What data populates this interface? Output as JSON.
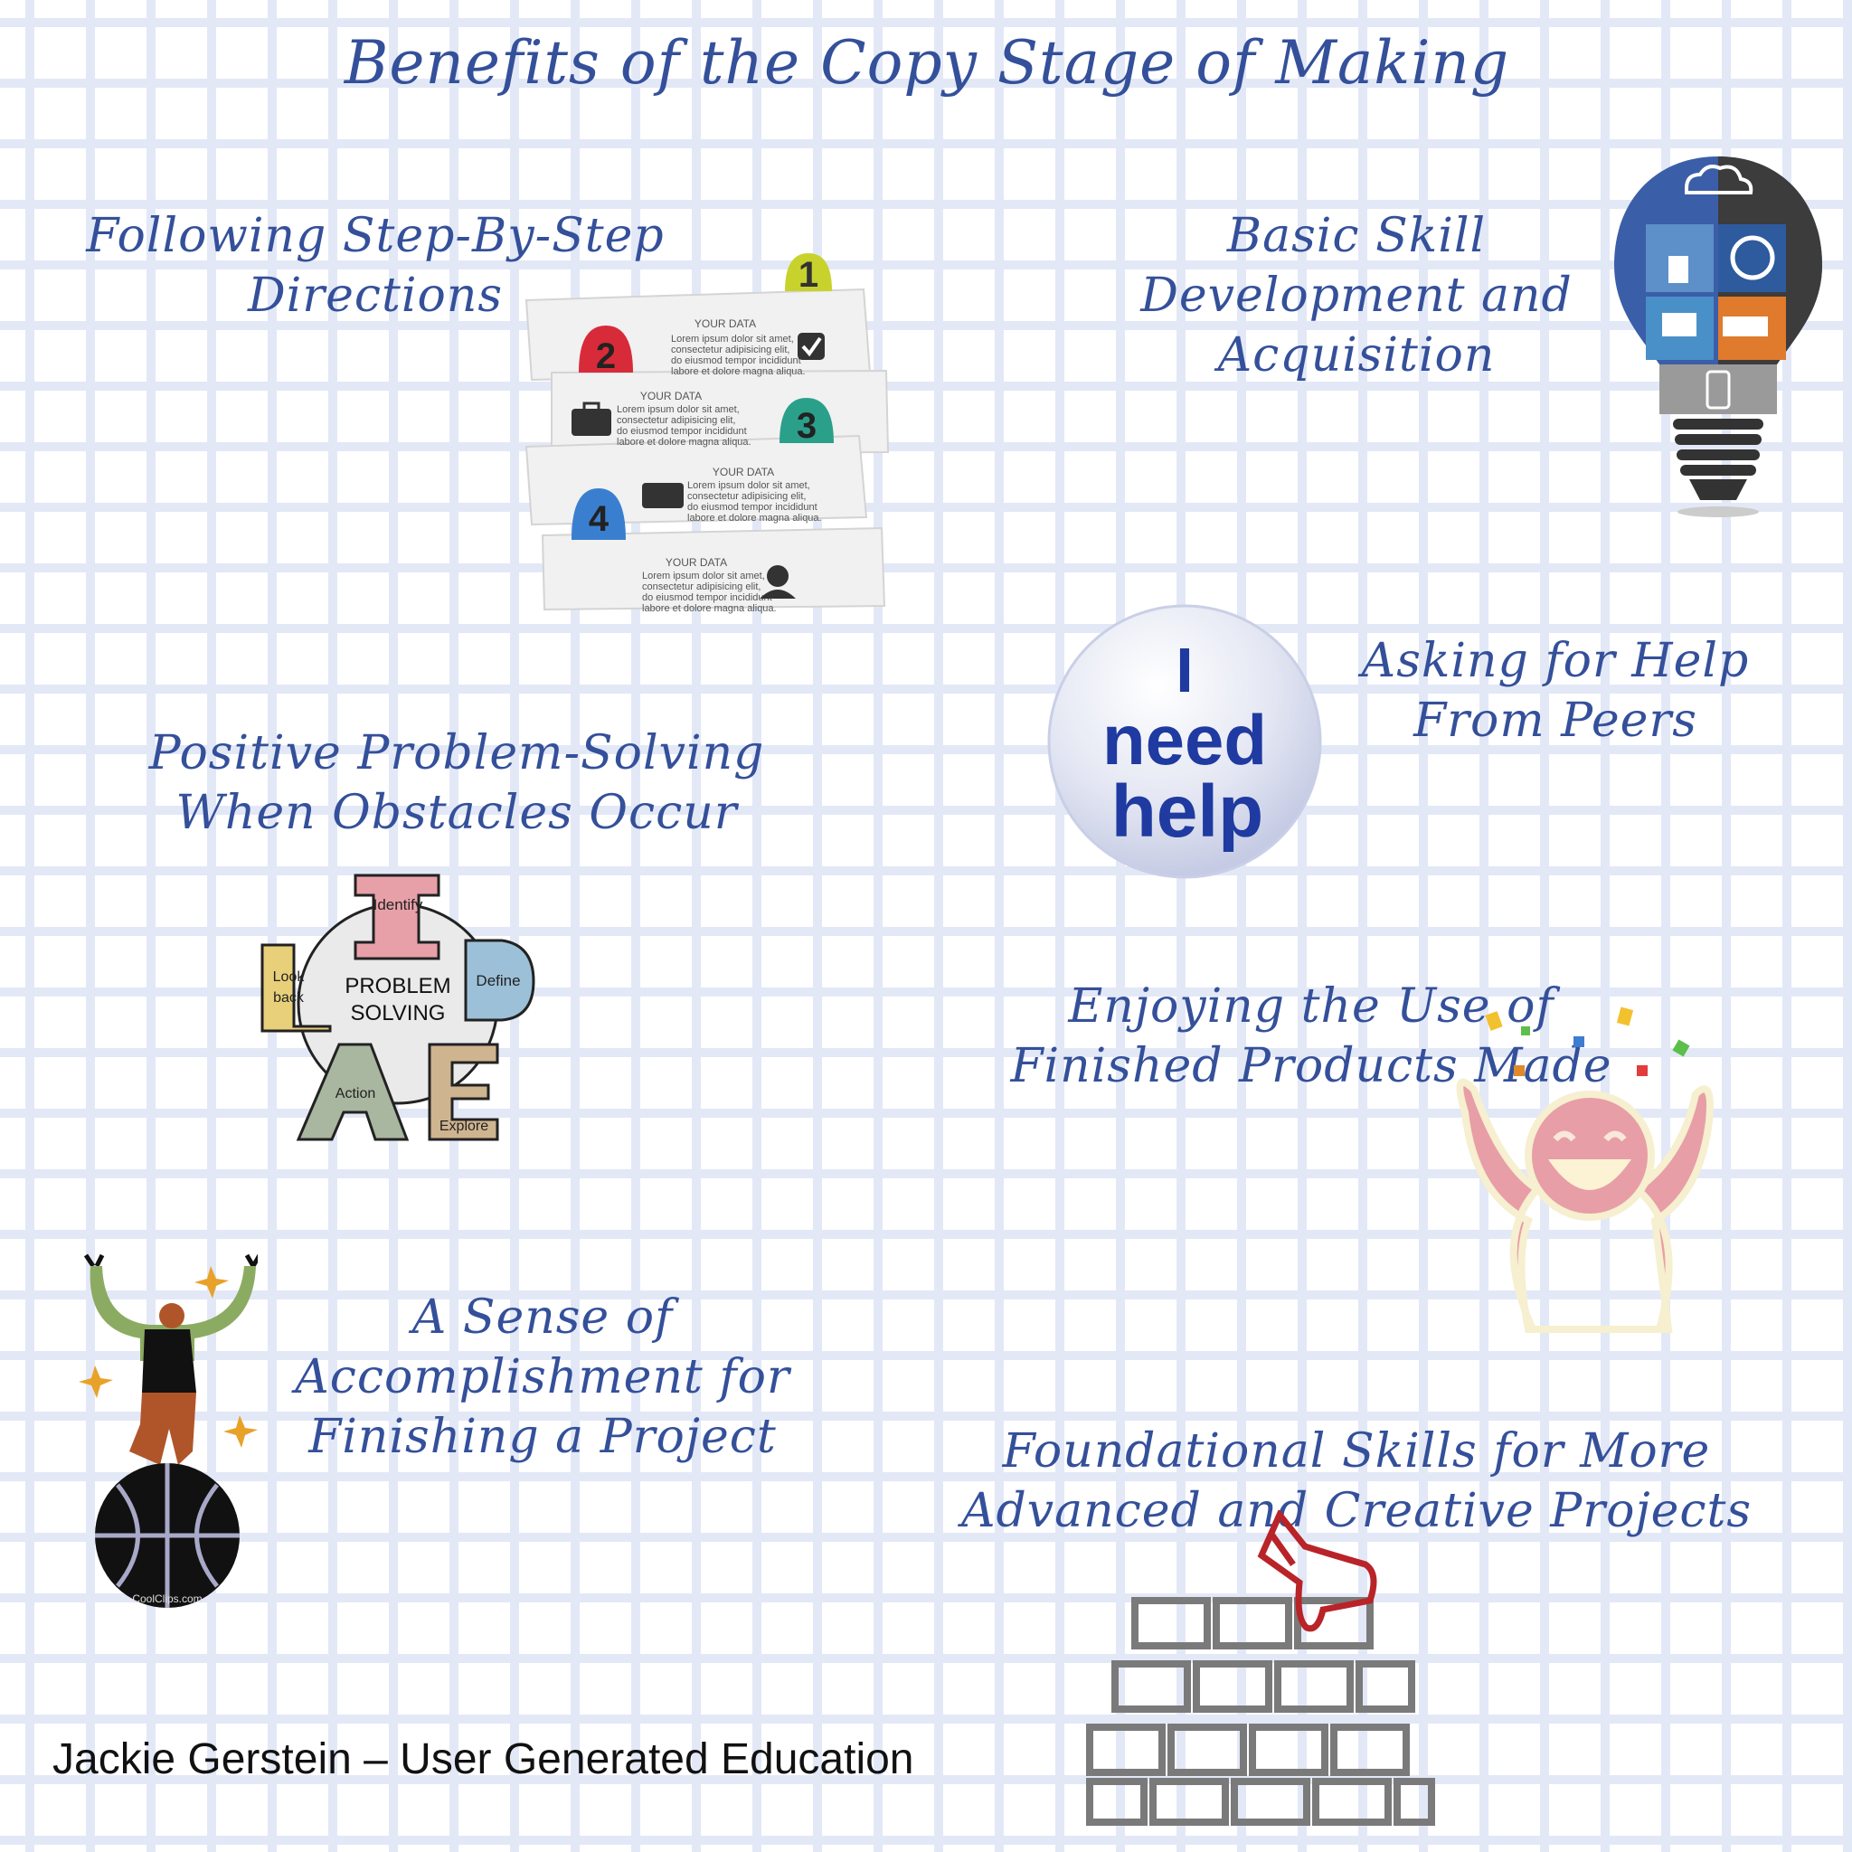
{
  "title": "Benefits of the Copy Stage of Making",
  "benefits": [
    {
      "lines": [
        "Following Step-By-Step",
        "Directions"
      ]
    },
    {
      "lines": [
        "Basic Skill",
        "Development and",
        "Acquisition"
      ]
    },
    {
      "lines": [
        "Asking for Help",
        "From Peers"
      ]
    },
    {
      "lines": [
        "Positive Problem-Solving",
        "When Obstacles Occur"
      ]
    },
    {
      "lines": [
        "Enjoying the Use of",
        "Finished Products Made"
      ]
    },
    {
      "lines": [
        "A Sense of",
        "Accomplishment for",
        "Finishing a Project"
      ]
    },
    {
      "lines": [
        "Foundational Skills for More",
        "Advanced and Creative Projects"
      ]
    }
  ],
  "steps_graphic": {
    "numbers": [
      "1",
      "2",
      "3",
      "4"
    ],
    "card_heading": "YOUR DATA",
    "card_body": [
      "Lorem ipsum dolor sit amet,",
      "consectetur adipisicing elit,",
      "do eiusmod tempor incididunt",
      "labore et dolore magna aliqua."
    ]
  },
  "help_bubble": {
    "lines": [
      "I",
      "need",
      "help"
    ]
  },
  "problem_solving": {
    "center": [
      "PROBLEM",
      "SOLVING"
    ],
    "labels": {
      "identify": "Identify",
      "define": "Define",
      "explore": "Explore",
      "action": "Action",
      "look": "Look",
      "back": "back"
    }
  },
  "clip_credit": "CoolClips.com",
  "footer": "Jackie Gerstein – User Generated Education",
  "colors": {
    "heading": "#34509a",
    "grid": "#e3e8f7"
  },
  "icons": [
    "steps-infographic",
    "puzzle-lightbulb-icon",
    "need-help-bubble",
    "problem-solving-cycle",
    "happy-person-icon",
    "juggler-on-ball-icon",
    "brick-wall-hand-icon"
  ]
}
